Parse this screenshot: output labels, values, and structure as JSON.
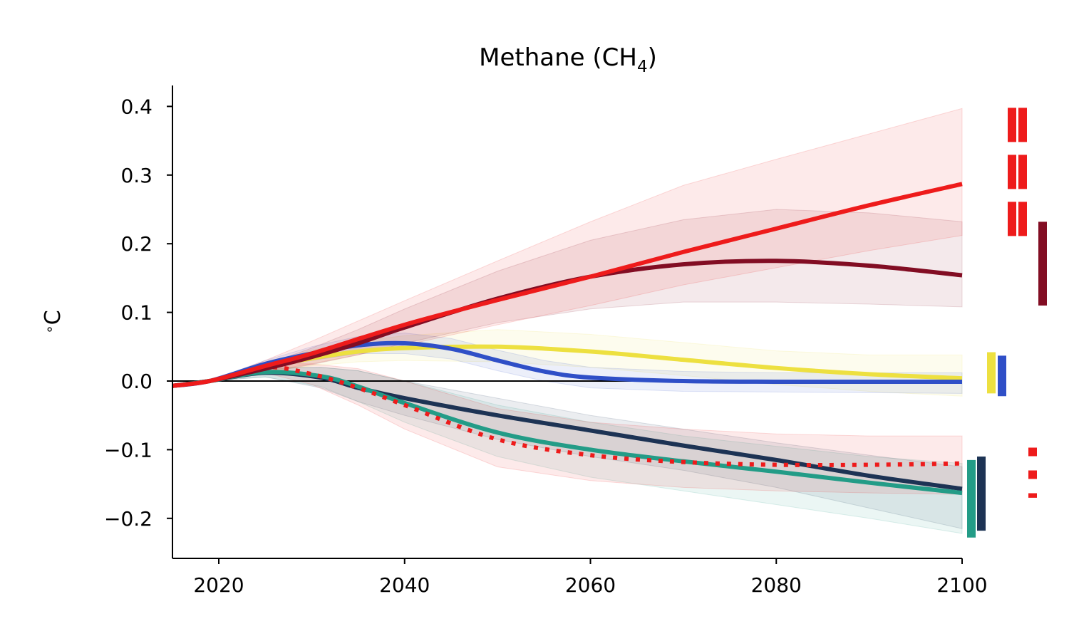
{
  "chart_data": {
    "type": "line",
    "title": {
      "main": "Methane (CH",
      "sub": "4",
      "close": ")"
    },
    "ylabel": {
      "degree": "∘",
      "unit": "C"
    },
    "xlabel": "",
    "xlim": [
      2015,
      2100
    ],
    "ylim": [
      -0.26,
      0.43
    ],
    "xticks": [
      2020,
      2040,
      2060,
      2080,
      2100
    ],
    "yticks": [
      0.4,
      0.3,
      0.2,
      0.1,
      0.0,
      -0.1,
      -0.2
    ],
    "ytick_labels": [
      "0.4",
      "0.3",
      "0.2",
      "0.1",
      "0.0",
      "−0.1",
      "−0.2"
    ],
    "xtick_labels": [
      "2020",
      "2040",
      "2060",
      "2080",
      "2100"
    ],
    "zero_line": true,
    "grid": false,
    "series": [
      {
        "color": "#1d3354",
        "style": "solid",
        "x": [
          2015,
          2019,
          2025,
          2031,
          2035,
          2040,
          2050,
          2060,
          2070,
          2080,
          2090,
          2100
        ],
        "y": [
          -0.007,
          0.0,
          0.012,
          0.005,
          -0.01,
          -0.025,
          -0.05,
          -0.072,
          -0.094,
          -0.115,
          -0.138,
          -0.157
        ],
        "band": [
          [
            -0.007,
            0.0,
            0.018,
            0.02,
            0.015,
            0.0,
            -0.025,
            -0.05,
            -0.07,
            -0.09,
            -0.108,
            -0.125
          ],
          [
            -0.007,
            0.0,
            0.006,
            -0.01,
            -0.03,
            -0.05,
            -0.085,
            -0.11,
            -0.13,
            -0.155,
            -0.185,
            -0.215
          ]
        ]
      },
      {
        "color": "#239c87",
        "style": "solid",
        "x": [
          2015,
          2019,
          2025,
          2031,
          2035,
          2040,
          2050,
          2060,
          2070,
          2080,
          2090,
          2100
        ],
        "y": [
          -0.007,
          0.0,
          0.013,
          0.007,
          -0.008,
          -0.032,
          -0.075,
          -0.1,
          -0.117,
          -0.132,
          -0.148,
          -0.163
        ],
        "band": [
          [
            -0.007,
            0.0,
            0.02,
            0.02,
            0.015,
            0.0,
            -0.035,
            -0.06,
            -0.08,
            -0.095,
            -0.11,
            -0.12
          ],
          [
            -0.007,
            0.0,
            0.006,
            -0.008,
            -0.03,
            -0.06,
            -0.11,
            -0.14,
            -0.16,
            -0.18,
            -0.2,
            -0.222
          ]
        ]
      },
      {
        "color": "#ee1b1b",
        "style": "dotted",
        "x": [
          2015,
          2019,
          2025,
          2030,
          2035,
          2040,
          2050,
          2060,
          2070,
          2080,
          2090,
          2100
        ],
        "y": [
          -0.007,
          0.0,
          0.02,
          0.01,
          -0.01,
          -0.035,
          -0.085,
          -0.108,
          -0.118,
          -0.122,
          -0.122,
          -0.12
        ],
        "band": [
          [
            -0.007,
            0.0,
            0.026,
            0.025,
            0.018,
            0.0,
            -0.04,
            -0.06,
            -0.07,
            -0.077,
            -0.08,
            -0.08
          ],
          [
            -0.007,
            0.0,
            0.012,
            -0.005,
            -0.035,
            -0.07,
            -0.125,
            -0.145,
            -0.155,
            -0.16,
            -0.163,
            -0.165
          ]
        ]
      },
      {
        "color": "#ede040",
        "style": "solid",
        "x": [
          2015,
          2019,
          2025,
          2030,
          2035,
          2040,
          2050,
          2060,
          2070,
          2080,
          2090,
          2100
        ],
        "y": [
          -0.007,
          0.0,
          0.02,
          0.033,
          0.043,
          0.048,
          0.05,
          0.043,
          0.031,
          0.019,
          0.01,
          0.004
        ],
        "band": [
          [
            -0.007,
            0.0,
            0.025,
            0.045,
            0.058,
            0.066,
            0.075,
            0.068,
            0.056,
            0.044,
            0.038,
            0.038
          ],
          [
            -0.007,
            0.0,
            0.014,
            0.022,
            0.028,
            0.03,
            0.028,
            0.02,
            0.008,
            -0.005,
            -0.015,
            -0.022
          ]
        ]
      },
      {
        "color": "#2f4fc7",
        "style": "solid",
        "x": [
          2015,
          2019,
          2025,
          2030,
          2035,
          2040,
          2045,
          2050,
          2055,
          2060,
          2070,
          2080,
          2090,
          2100
        ],
        "y": [
          -0.007,
          0.0,
          0.025,
          0.04,
          0.052,
          0.055,
          0.047,
          0.03,
          0.014,
          0.005,
          0.0,
          -0.001,
          -0.001,
          -0.001
        ],
        "band": [
          [
            -0.007,
            0.0,
            0.03,
            0.05,
            0.065,
            0.07,
            0.062,
            0.045,
            0.03,
            0.02,
            0.014,
            0.012,
            0.012,
            0.012
          ],
          [
            -0.007,
            0.0,
            0.02,
            0.03,
            0.04,
            0.04,
            0.032,
            0.015,
            0.0,
            -0.01,
            -0.015,
            -0.016,
            -0.017,
            -0.018
          ]
        ]
      },
      {
        "color": "#820d23",
        "style": "solid",
        "x": [
          2015,
          2019,
          2025,
          2030,
          2035,
          2040,
          2050,
          2060,
          2070,
          2080,
          2090,
          2100
        ],
        "y": [
          -0.007,
          0.0,
          0.018,
          0.035,
          0.055,
          0.078,
          0.12,
          0.152,
          0.17,
          0.175,
          0.168,
          0.154
        ],
        "band": [
          [
            -0.007,
            0.0,
            0.024,
            0.048,
            0.075,
            0.105,
            0.16,
            0.205,
            0.235,
            0.25,
            0.245,
            0.232
          ],
          [
            -0.007,
            0.0,
            0.012,
            0.024,
            0.038,
            0.055,
            0.085,
            0.105,
            0.115,
            0.115,
            0.112,
            0.108
          ]
        ]
      },
      {
        "color": "#ee1b1b",
        "style": "solid",
        "x": [
          2015,
          2019,
          2025,
          2030,
          2040,
          2050,
          2060,
          2070,
          2080,
          2090,
          2100
        ],
        "y": [
          -0.007,
          0.0,
          0.022,
          0.04,
          0.082,
          0.118,
          0.152,
          0.188,
          0.222,
          0.256,
          0.287
        ],
        "band": [
          [
            -0.007,
            0.0,
            0.03,
            0.058,
            0.117,
            0.175,
            0.232,
            0.285,
            0.323,
            0.36,
            0.397
          ],
          [
            -0.007,
            0.0,
            0.014,
            0.025,
            0.052,
            0.082,
            0.11,
            0.14,
            0.165,
            0.19,
            0.212
          ]
        ]
      }
    ],
    "range_bars": [
      {
        "color": "#239c87",
        "style": "solid",
        "low": -0.228,
        "high": -0.115,
        "slot": 0
      },
      {
        "color": "#1d3354",
        "style": "solid",
        "low": -0.218,
        "high": -0.11,
        "slot": 1
      },
      {
        "color": "#ede040",
        "style": "solid",
        "low": -0.018,
        "high": 0.042,
        "slot": 2
      },
      {
        "color": "#2f4fc7",
        "style": "solid",
        "low": -0.022,
        "high": 0.037,
        "slot": 3
      },
      {
        "color": "#ee1b1b",
        "style": "dashed",
        "low": 0.21,
        "high": 0.398,
        "slot": 4
      },
      {
        "color": "#ee1b1b",
        "style": "dashed",
        "low": 0.21,
        "high": 0.398,
        "slot": 5
      },
      {
        "color": "#ee1b1b",
        "style": "dotted",
        "low": -0.17,
        "high": -0.097,
        "slot": 6
      },
      {
        "color": "#820d23",
        "style": "solid",
        "low": 0.11,
        "high": 0.232,
        "slot": 7
      }
    ]
  }
}
